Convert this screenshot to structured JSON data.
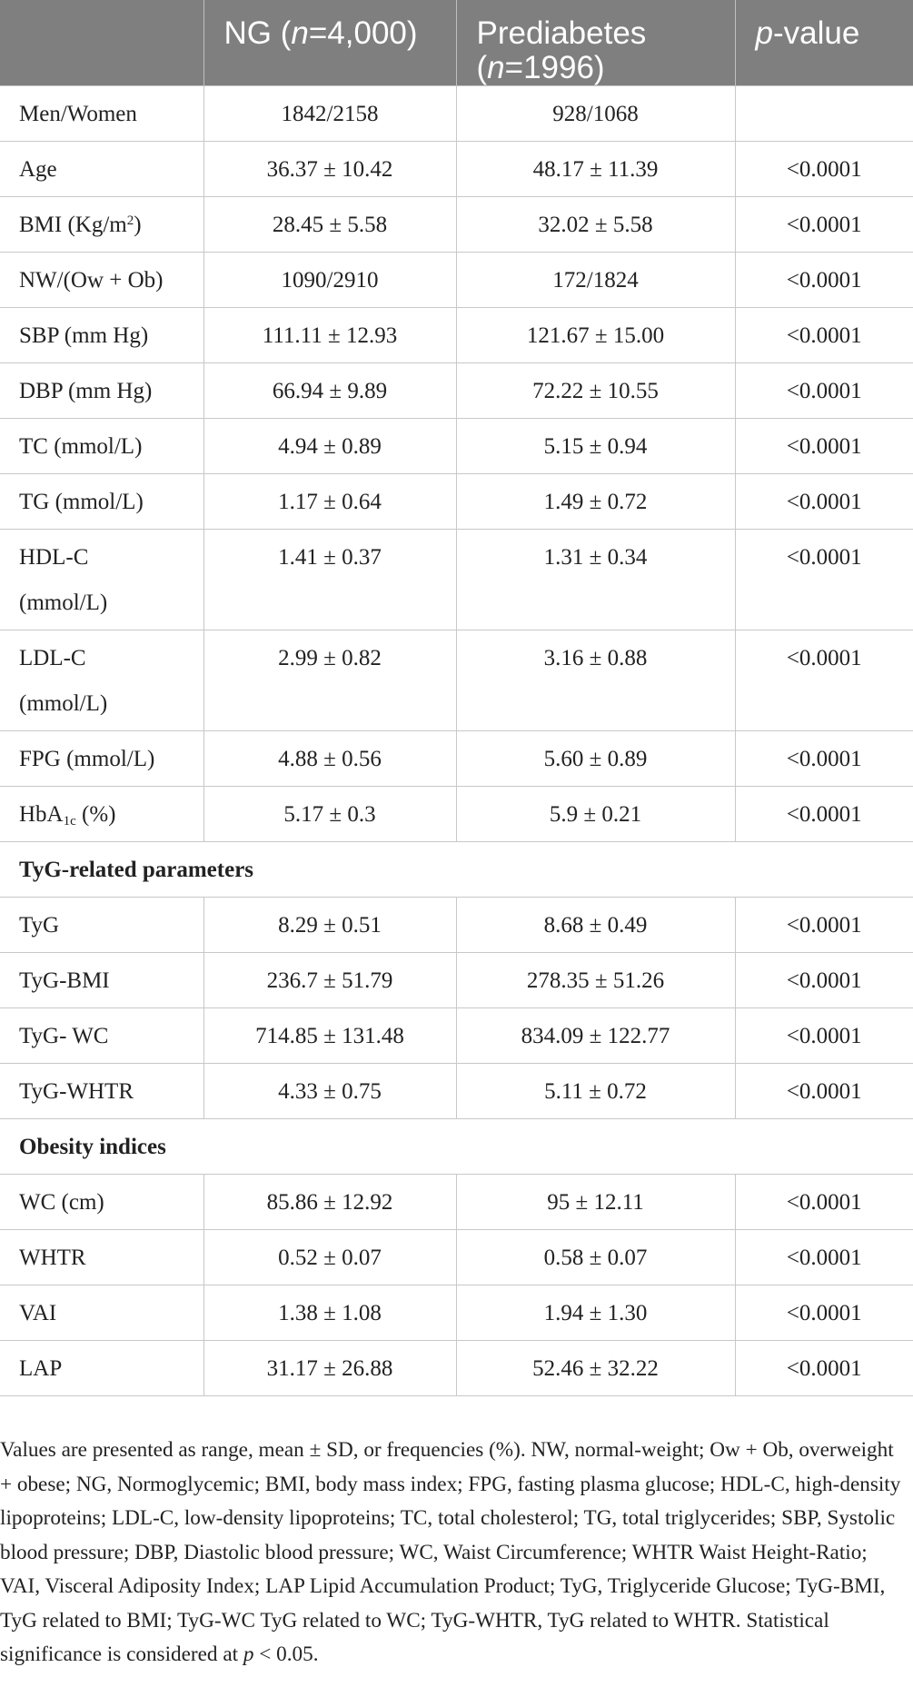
{
  "header": {
    "col0": "",
    "col1_prefix": "NG (",
    "col1_italic": "n",
    "col1_suffix": "=4,000)",
    "col2_line1": "Prediabetes",
    "col2_prefix": "(",
    "col2_italic": "n",
    "col2_suffix": "=1996)",
    "col3_italic": "p",
    "col3_suffix": "-value"
  },
  "rows": [
    {
      "label": "Men/Women",
      "ng": "1842/2158",
      "pre": "928/1068",
      "p": ""
    },
    {
      "label": "Age",
      "ng": "36.37 ± 10.42",
      "pre": "48.17 ± 11.39",
      "p": "<0.0001"
    },
    {
      "label_prefix": "BMI (Kg/m",
      "label_sup": "2",
      "label_suffix": ")",
      "ng": "28.45 ± 5.58",
      "pre": "32.02 ± 5.58",
      "p": "<0.0001"
    },
    {
      "label": "NW/(Ow + Ob)",
      "ng": "1090/2910",
      "pre": "172/1824",
      "p": "<0.0001"
    },
    {
      "label": "SBP (mm Hg)",
      "ng": "111.11 ± 12.93",
      "pre": "121.67 ± 15.00",
      "p": "<0.0001"
    },
    {
      "label": "DBP (mm Hg)",
      "ng": "66.94 ± 9.89",
      "pre": "72.22 ± 10.55",
      "p": "<0.0001"
    },
    {
      "label": "TC (mmol/L)",
      "ng": "4.94 ± 0.89",
      "pre": "5.15 ± 0.94",
      "p": "<0.0001"
    },
    {
      "label": "TG (mmol/L)",
      "ng": "1.17 ± 0.64",
      "pre": "1.49 ± 0.72",
      "p": "<0.0001"
    },
    {
      "label_line1": "HDL-C",
      "label_line2": "(mmol/L)",
      "ng": "1.41 ± 0.37",
      "pre": "1.31 ± 0.34",
      "p": "<0.0001"
    },
    {
      "label_line1": "LDL-C",
      "label_line2": "(mmol/L)",
      "ng": "2.99 ± 0.82",
      "pre": "3.16 ± 0.88",
      "p": "<0.0001"
    },
    {
      "label": "FPG (mmol/L)",
      "ng": "4.88 ± 0.56",
      "pre": "5.60 ± 0.89",
      "p": "<0.0001"
    },
    {
      "label_prefix": "HbA",
      "label_sub": "1c",
      "label_suffix": " (%)",
      "ng": "5.17 ± 0.3",
      "pre": "5.9 ± 0.21",
      "p": "<0.0001"
    },
    {
      "section": "TyG-related parameters"
    },
    {
      "label": "TyG",
      "ng": "8.29 ± 0.51",
      "pre": "8.68 ± 0.49",
      "p": "<0.0001"
    },
    {
      "label": "TyG-BMI",
      "ng": "236.7 ± 51.79",
      "pre": "278.35 ± 51.26",
      "p": "<0.0001"
    },
    {
      "label": "TyG- WC",
      "ng": "714.85 ± 131.48",
      "pre": "834.09 ± 122.77",
      "p": "<0.0001"
    },
    {
      "label": "TyG-WHTR",
      "ng": "4.33 ± 0.75",
      "pre": "5.11 ± 0.72",
      "p": "<0.0001"
    },
    {
      "section": "Obesity indices"
    },
    {
      "label": "WC (cm)",
      "ng": "85.86 ± 12.92",
      "pre": "95 ± 12.11",
      "p": "<0.0001"
    },
    {
      "label": "WHTR",
      "ng": "0.52 ± 0.07",
      "pre": "0.58 ± 0.07",
      "p": "<0.0001"
    },
    {
      "label": "VAI",
      "ng": "1.38 ± 1.08",
      "pre": "1.94 ± 1.30",
      "p": "<0.0001"
    },
    {
      "label": "LAP",
      "ng": "31.17 ± 26.88",
      "pre": "52.46 ± 32.22",
      "p": "<0.0001"
    }
  ],
  "footnote": {
    "text": "Values are presented as range, mean ± SD, or frequencies (%). NW, normal-weight; Ow + Ob, overweight + obese; NG, Normoglycemic; BMI, body mass index; FPG, fasting plasma glucose; HDL-C, high-density lipoproteins; LDL-C, low-density lipoproteins; TC, total cholesterol; TG, total triglycerides; SBP, Systolic blood pressure; DBP, Diastolic blood pressure; WC, Waist Circumference; WHTR Waist Height-Ratio; VAI, Visceral Adiposity Index; LAP Lipid Accumulation Product; TyG, Triglyceride Glucose; TyG-BMI, TyG related to BMI; TyG-WC TyG related to WC; TyG-WHTR, TyG related to WHTR. Statistical significance is considered at ",
    "italic": "p",
    "suffix": " < 0.05."
  },
  "colors": {
    "header_bg": "#7f7f7f",
    "header_text": "#ffffff",
    "grid": "#c8c8c8",
    "text": "#222222"
  }
}
